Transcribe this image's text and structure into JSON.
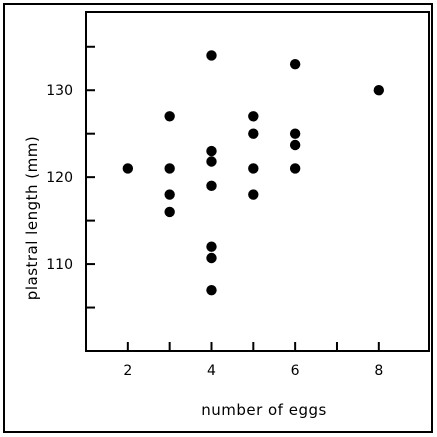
{
  "chart_data": {
    "type": "scatter",
    "title": "",
    "xlabel": "number of eggs",
    "ylabel": "plastral length (mm)",
    "xlim": [
      1,
      9.2
    ],
    "ylim": [
      100,
      139
    ],
    "x_ticks": [
      2,
      3,
      4,
      5,
      6,
      7,
      8
    ],
    "x_tick_labels": [
      "2",
      "4",
      "6",
      "8"
    ],
    "x_tick_label_values": [
      2,
      4,
      6,
      8
    ],
    "y_ticks": [
      105,
      110,
      115,
      120,
      125,
      130,
      135
    ],
    "y_tick_labels": [
      "110",
      "120",
      "130"
    ],
    "y_tick_label_values": [
      110,
      120,
      130
    ],
    "grid": false,
    "series": [
      {
        "points": [
          {
            "x": 2,
            "y": 121
          },
          {
            "x": 3,
            "y": 127
          },
          {
            "x": 3,
            "y": 121
          },
          {
            "x": 3,
            "y": 118
          },
          {
            "x": 3,
            "y": 116
          },
          {
            "x": 4,
            "y": 134
          },
          {
            "x": 4,
            "y": 123
          },
          {
            "x": 4,
            "y": 121.8
          },
          {
            "x": 4,
            "y": 119
          },
          {
            "x": 4,
            "y": 112
          },
          {
            "x": 4,
            "y": 110.7
          },
          {
            "x": 4,
            "y": 107
          },
          {
            "x": 5,
            "y": 127
          },
          {
            "x": 5,
            "y": 125
          },
          {
            "x": 5,
            "y": 121
          },
          {
            "x": 5,
            "y": 118
          },
          {
            "x": 6,
            "y": 133
          },
          {
            "x": 6,
            "y": 125
          },
          {
            "x": 6,
            "y": 123.7
          },
          {
            "x": 6,
            "y": 121
          },
          {
            "x": 8,
            "y": 130
          }
        ]
      }
    ]
  }
}
